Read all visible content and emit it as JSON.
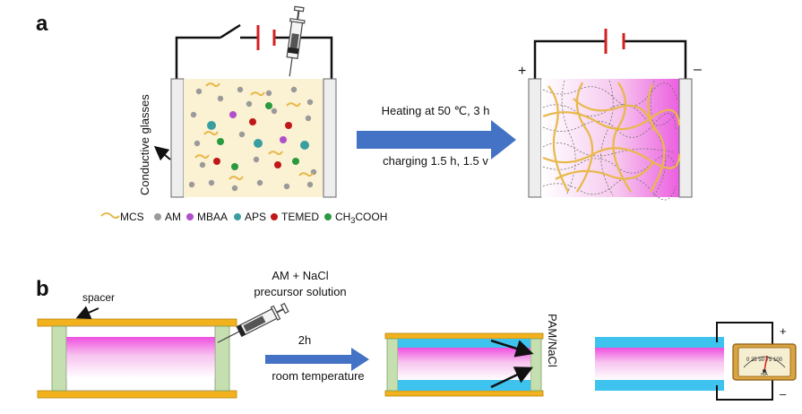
{
  "panel_a": {
    "label": "a",
    "side_label": "Conductive glasses",
    "process_line1": "Heating at 50 ℃, 3 h",
    "process_line2": "charging 1.5 h, 1.5 v",
    "plus": "+",
    "minus": "–",
    "legend": {
      "mcs": "MCS",
      "am": "AM",
      "mbaa": "MBAA",
      "aps": "APS",
      "temed": "TEMED",
      "ch3cooh_main": "CH",
      "ch3cooh_sub": "3",
      "ch3cooh_tail": "COOH"
    },
    "colors": {
      "mcs": "#e8b84a",
      "am": "#9a9a9a",
      "mbaa": "#b04fc9",
      "aps": "#3a9ea0",
      "temed": "#c01818",
      "ch3cooh": "#2a9a40",
      "arrow": "#4472c4",
      "battery": "#d62020"
    }
  },
  "panel_b": {
    "label": "b",
    "spacer": "spacer",
    "precursor_line1": "AM + NaCl",
    "precursor_line2": "precursor solution",
    "time": "2h",
    "condition": "room temperature",
    "material": "PAM/NaCl",
    "meter_scale": "0 25 50 75 100",
    "meter_unit": "mA",
    "plus": "+",
    "minus": "–",
    "colors": {
      "plate": "#f2b21e",
      "spacer_block": "#c5dfb0",
      "gel": "#3ec3ef"
    }
  }
}
